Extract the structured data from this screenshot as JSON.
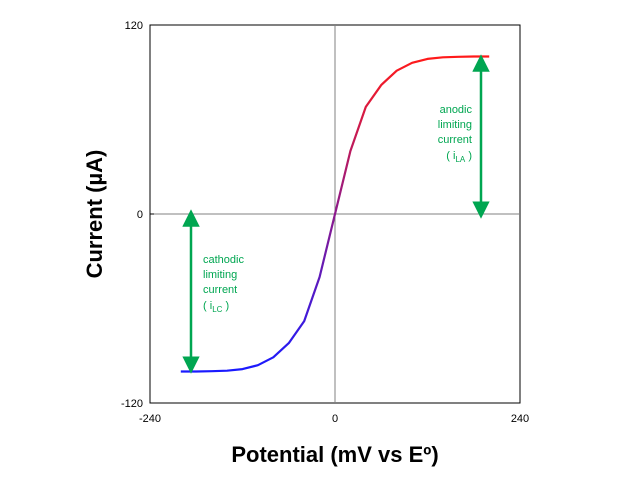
{
  "chart_data": {
    "type": "line",
    "xlabel": "Potential (mV vs Eº)",
    "ylabel": "Current (µA)",
    "xlim": [
      -240,
      240
    ],
    "ylim": [
      -120,
      120
    ],
    "x_ticks": [
      "-240",
      "0",
      "240"
    ],
    "y_ticks": [
      "120",
      "0",
      "-120"
    ],
    "grid": "zero lines only",
    "gradient_colors": {
      "cathodic": "#1a1aff",
      "anodic": "#ff1a1a"
    },
    "annotation_color": "#00a651",
    "series": [
      {
        "x": [
          -240,
          -220,
          -200,
          -180,
          -160,
          -140,
          -120,
          -100,
          -80,
          -60,
          -40,
          -20,
          0,
          20,
          40,
          60,
          80,
          100,
          120,
          140,
          160,
          180,
          200,
          220,
          240
        ],
        "y": [
          -100,
          -100,
          -100,
          -100,
          -99.8,
          -99.5,
          -98.5,
          -96,
          -91,
          -82,
          -68,
          -40,
          0,
          40,
          68,
          82,
          91,
          96,
          98.5,
          99.5,
          99.8,
          100,
          100,
          100,
          100
        ]
      }
    ],
    "annotations": {
      "anodic": {
        "lines": [
          "anodic",
          "limiting",
          "current"
        ],
        "symbol_base": "i",
        "symbol_sub": "LA"
      },
      "cathodic": {
        "lines": [
          "cathodic",
          "limiting",
          "current"
        ],
        "symbol_base": "i",
        "symbol_sub": "LC"
      }
    }
  }
}
